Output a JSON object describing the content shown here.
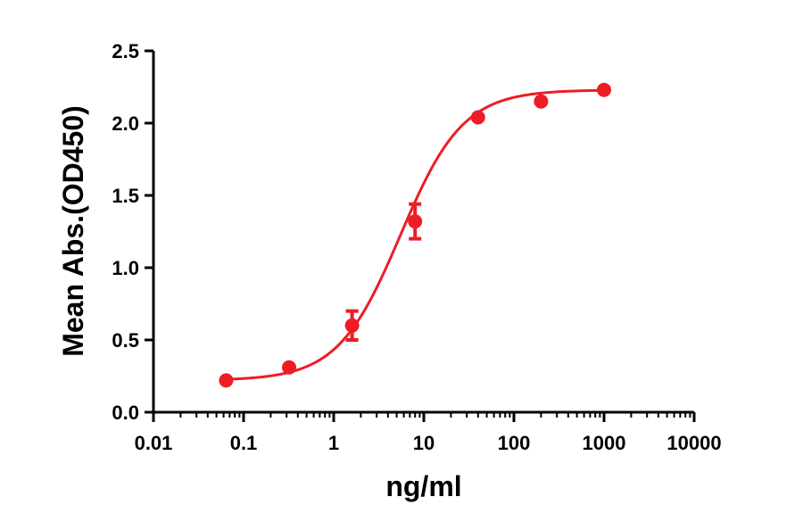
{
  "chart_data": {
    "type": "scatter",
    "xlabel": "ng/ml",
    "ylabel": "Mean Abs.(OD450)",
    "x_scale": "log",
    "xlim": [
      0.01,
      10000
    ],
    "ylim": [
      0,
      2.5
    ],
    "x_ticks": [
      0.01,
      0.1,
      1,
      10,
      100,
      1000,
      10000
    ],
    "x_tick_labels": [
      "0.01",
      "0.1",
      "1",
      "10",
      "100",
      "1000",
      "10000"
    ],
    "y_ticks": [
      0,
      0.5,
      1,
      1.5,
      2,
      2.5
    ],
    "y_tick_labels": [
      "0.0",
      "0.5",
      "1.0",
      "1.5",
      "2.0",
      "2.5"
    ],
    "grid": false,
    "legend": "none",
    "series": [
      {
        "color": "#ee1c25",
        "points": [
          {
            "x": 0.064,
            "y": 0.22,
            "err": 0
          },
          {
            "x": 0.32,
            "y": 0.31,
            "err": 0
          },
          {
            "x": 1.6,
            "y": 0.6,
            "err": 0.1
          },
          {
            "x": 8,
            "y": 1.32,
            "err": 0.12
          },
          {
            "x": 40,
            "y": 2.04,
            "err": 0
          },
          {
            "x": 200,
            "y": 2.15,
            "err": 0
          },
          {
            "x": 1000,
            "y": 2.23,
            "err": 0
          }
        ],
        "fit": {
          "model": "4PL",
          "bottom": 0.22,
          "top": 2.23,
          "ec50": 5.5,
          "hill": 1.25
        }
      }
    ]
  }
}
